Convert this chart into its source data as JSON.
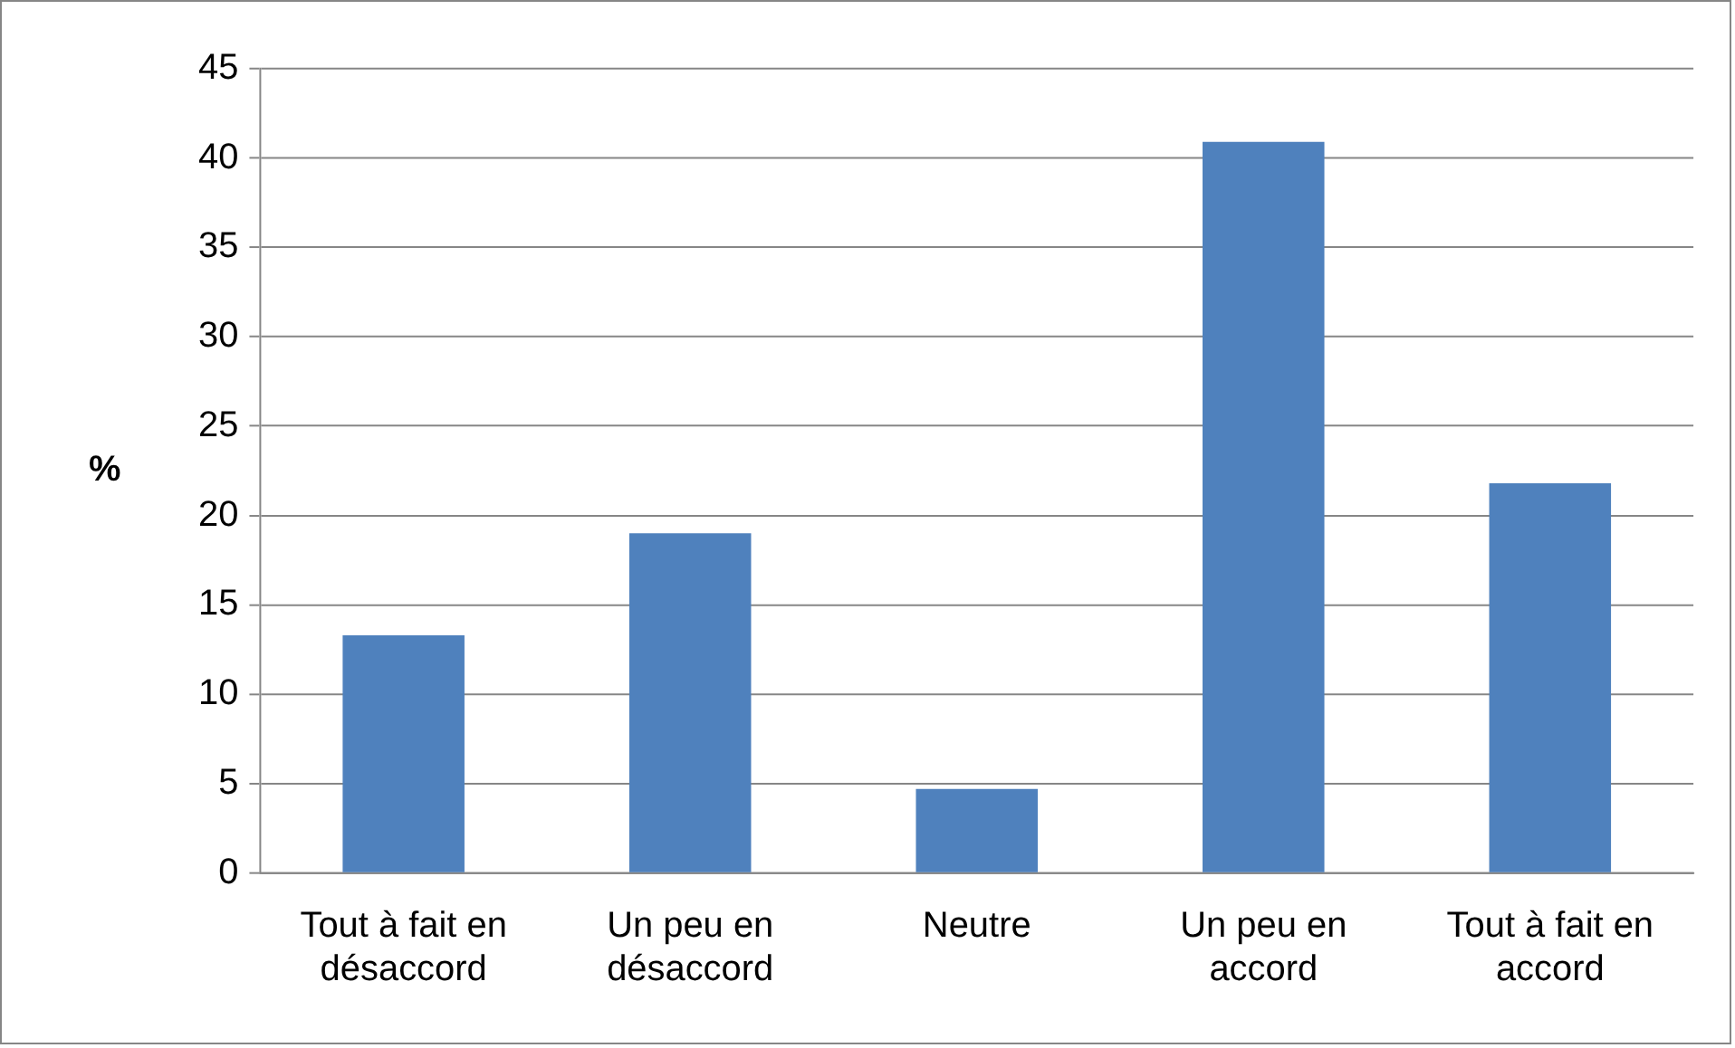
{
  "chart_data": {
    "type": "bar",
    "ylabel": "%",
    "categories": [
      "Tout à fait en désaccord",
      "Un peu en désaccord",
      "Neutre",
      "Un peu en accord",
      "Tout à fait en accord"
    ],
    "values": [
      13.3,
      19,
      4.7,
      40.9,
      21.8
    ],
    "color": "#4f81bd",
    "ylim": [
      0,
      45
    ],
    "yticks": [
      0,
      5,
      10,
      15,
      20,
      25,
      30,
      35,
      40,
      45
    ],
    "grid": "y",
    "legend": false
  }
}
